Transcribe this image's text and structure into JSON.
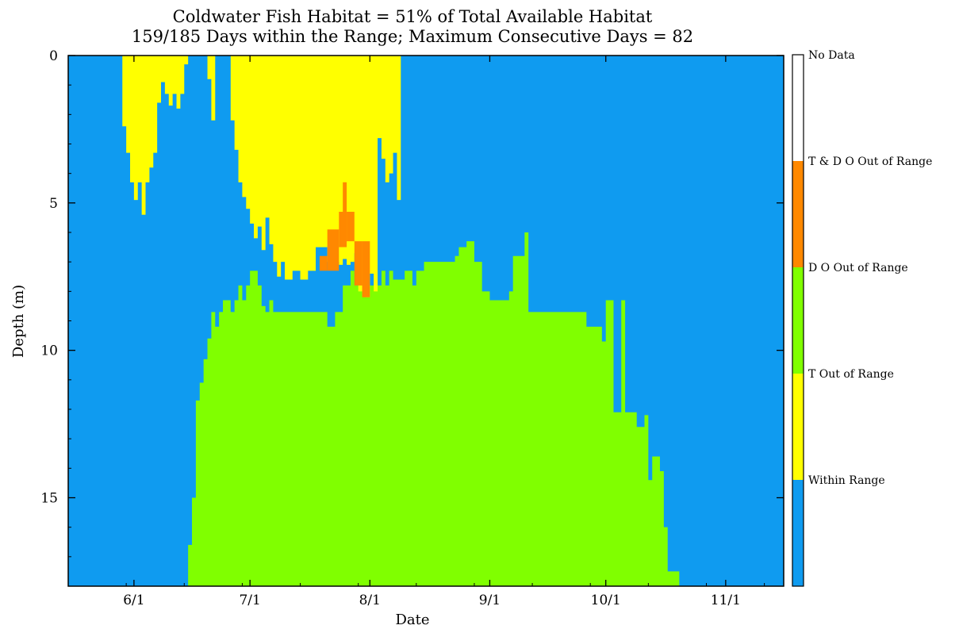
{
  "chart_data": {
    "type": "heatmap",
    "title": "Coldwater Fish Habitat = 51% of Total Available Habitat",
    "subtitle": "159/185 Days within the Range; Maximum Consecutive Days = 82",
    "xlabel": "Date",
    "ylabel": "Depth (m)",
    "x_ticks": [
      "6/1",
      "7/1",
      "8/1",
      "9/1",
      "10/1",
      "11/1"
    ],
    "y_ticks": [
      "0",
      "5",
      "10",
      "15"
    ],
    "ylim": [
      0,
      18
    ],
    "y_inverted": true,
    "x_range_days": {
      "start": -17,
      "end": 168,
      "tick_offsets": [
        0,
        30,
        61,
        92,
        122,
        153
      ]
    },
    "legend": {
      "position": "right",
      "categories": [
        {
          "label": "Within Range",
          "color": "#0f9bf0"
        },
        {
          "label": "T  Out of Range",
          "color": "#ffff00"
        },
        {
          "label": "D O  Out of Range",
          "color": "#80ff00"
        },
        {
          "label": "T  & D O  Out of Range",
          "color": "#ff8800"
        },
        {
          "label": "No Data",
          "color": "#ffffff"
        }
      ]
    },
    "zones": [
      {
        "category": "D O  Out of Range",
        "color": "#80ff00",
        "profile_top_depth": [
          [
            13,
            18
          ],
          [
            14,
            16.6
          ],
          [
            15,
            15.0
          ],
          [
            16,
            11.7
          ],
          [
            17,
            11.1
          ],
          [
            18,
            10.3
          ],
          [
            19,
            9.6
          ],
          [
            20,
            8.7
          ],
          [
            21,
            9.2
          ],
          [
            22,
            8.7
          ],
          [
            23,
            8.3
          ],
          [
            25,
            8.7
          ],
          [
            26,
            8.3
          ],
          [
            27,
            7.8
          ],
          [
            28,
            8.3
          ],
          [
            29,
            7.8
          ],
          [
            30,
            7.3
          ],
          [
            32,
            7.8
          ],
          [
            33,
            8.5
          ],
          [
            34,
            8.7
          ],
          [
            35,
            8.3
          ],
          [
            36,
            8.7
          ],
          [
            42,
            8.7
          ],
          [
            50,
            9.2
          ],
          [
            52,
            8.7
          ],
          [
            54,
            7.8
          ],
          [
            56,
            7.3
          ],
          [
            57,
            7.8
          ],
          [
            58,
            7.3
          ],
          [
            59,
            7.8
          ],
          [
            60,
            7.3
          ],
          [
            61,
            7.8
          ],
          [
            62,
            7.3
          ],
          [
            63,
            7.8
          ],
          [
            64,
            7.3
          ],
          [
            65,
            7.8
          ],
          [
            66,
            7.3
          ],
          [
            67,
            7.6
          ],
          [
            70,
            7.3
          ],
          [
            72,
            7.8
          ],
          [
            73,
            7.3
          ],
          [
            75,
            7.0
          ],
          [
            80,
            7.0
          ],
          [
            83,
            6.8
          ],
          [
            84,
            6.5
          ],
          [
            86,
            6.3
          ],
          [
            88,
            7.0
          ],
          [
            90,
            8.0
          ],
          [
            92,
            8.3
          ],
          [
            97,
            8.0
          ],
          [
            98,
            6.8
          ],
          [
            101,
            6.0
          ],
          [
            102,
            8.7
          ],
          [
            115,
            8.7
          ],
          [
            117,
            9.2
          ],
          [
            121,
            9.7
          ],
          [
            122,
            8.3
          ],
          [
            124,
            12.1
          ],
          [
            126,
            8.3
          ],
          [
            127,
            12.1
          ],
          [
            130,
            12.6
          ],
          [
            132,
            12.2
          ],
          [
            133,
            14.4
          ],
          [
            134,
            13.6
          ],
          [
            136,
            14.1
          ],
          [
            137,
            16.0
          ],
          [
            138,
            17.5
          ],
          [
            140,
            17.5
          ],
          [
            141,
            18
          ]
        ]
      },
      {
        "category": "T  Out of Range",
        "color": "#ffff00",
        "profile_bottom_depth": [
          [
            -4,
            0
          ],
          [
            -3,
            2.4
          ],
          [
            -2,
            3.3
          ],
          [
            -1,
            4.3
          ],
          [
            0,
            4.9
          ],
          [
            1,
            4.3
          ],
          [
            2,
            5.4
          ],
          [
            3,
            4.3
          ],
          [
            4,
            3.8
          ],
          [
            5,
            3.3
          ],
          [
            6,
            1.6
          ],
          [
            7,
            0.9
          ],
          [
            8,
            1.3
          ],
          [
            9,
            1.7
          ],
          [
            10,
            1.3
          ],
          [
            11,
            1.8
          ],
          [
            12,
            1.3
          ],
          [
            13,
            0.3
          ],
          [
            14,
            0
          ],
          [
            18,
            0
          ],
          [
            19,
            0.8
          ],
          [
            20,
            2.2
          ],
          [
            21,
            0
          ],
          [
            24,
            0
          ],
          [
            25,
            2.2
          ],
          [
            26,
            3.2
          ],
          [
            27,
            4.3
          ],
          [
            28,
            4.8
          ],
          [
            29,
            5.2
          ],
          [
            30,
            5.7
          ],
          [
            31,
            6.2
          ],
          [
            32,
            5.8
          ],
          [
            33,
            6.6
          ],
          [
            34,
            5.5
          ],
          [
            35,
            6.4
          ],
          [
            36,
            7.0
          ],
          [
            37,
            7.5
          ],
          [
            38,
            7.0
          ],
          [
            39,
            7.6
          ],
          [
            41,
            7.3
          ],
          [
            43,
            7.6
          ],
          [
            45,
            7.3
          ],
          [
            47,
            6.5
          ],
          [
            50,
            7.0
          ],
          [
            53,
            7.1
          ],
          [
            54,
            6.9
          ],
          [
            55,
            7.1
          ],
          [
            56,
            7.0
          ],
          [
            57,
            6.7
          ],
          [
            58,
            8.0
          ],
          [
            60,
            8.2
          ],
          [
            61,
            7.4
          ],
          [
            62,
            8.0
          ],
          [
            63,
            2.8
          ],
          [
            64,
            3.5
          ],
          [
            65,
            4.3
          ],
          [
            66,
            4.0
          ],
          [
            67,
            3.3
          ],
          [
            68,
            4.9
          ],
          [
            69,
            0
          ]
        ],
        "x_span": [
          -4,
          69
        ]
      },
      {
        "category": "T  & D O  Out of Range",
        "color": "#ff8800",
        "cells": [
          {
            "x_start": 48,
            "x_end": 50,
            "depth_top": 6.8,
            "depth_bottom": 7.3
          },
          {
            "x_start": 50,
            "x_end": 53,
            "depth_top": 5.9,
            "depth_bottom": 7.3
          },
          {
            "x_start": 53,
            "x_end": 55,
            "depth_top": 5.3,
            "depth_bottom": 6.5
          },
          {
            "x_start": 54,
            "x_end": 55,
            "depth_top": 4.3,
            "depth_bottom": 5.3
          },
          {
            "x_start": 55,
            "x_end": 57,
            "depth_top": 5.3,
            "depth_bottom": 6.3
          },
          {
            "x_start": 57,
            "x_end": 59,
            "depth_top": 6.3,
            "depth_bottom": 7.8
          },
          {
            "x_start": 59,
            "x_end": 61,
            "depth_top": 6.3,
            "depth_bottom": 8.2
          }
        ]
      }
    ]
  }
}
